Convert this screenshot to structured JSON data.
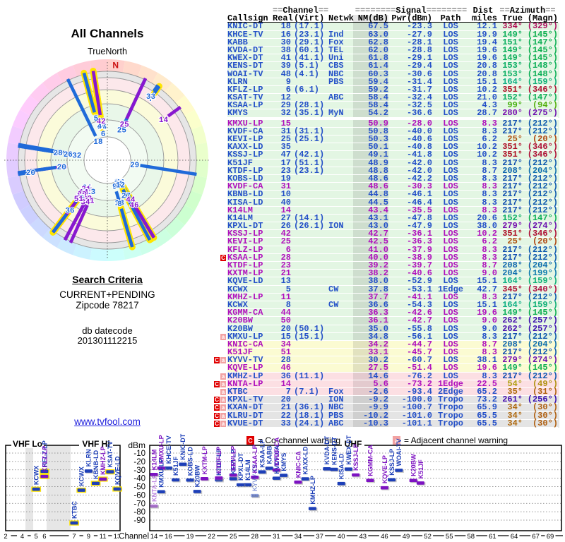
{
  "radar": {
    "title": "All Channels",
    "north_label": "TrueNorth",
    "n_marker": "N"
  },
  "search": {
    "heading": "Search Criteria",
    "mode": "CURRENT+PENDING",
    "zipcode": "Zipcode 78217",
    "db_label": "db datecode",
    "db_datecode": "201301112215",
    "link": "www.tvfool.com"
  },
  "table": {
    "header_groups": {
      "channel": {
        "pre": "==",
        "word": "Channel",
        "post": "=="
      },
      "signal": {
        "pre": "========",
        "word": "Signal",
        "post": "========"
      },
      "dist": "Dist",
      "azimuth": {
        "pre": "==",
        "word": "Azimuth",
        "post": "=="
      }
    },
    "columns": [
      "Callsign",
      "Real",
      "(Virt)",
      "Netwk",
      "NM(dB)",
      "Pwr(dBm)",
      "Path",
      "miles",
      "True",
      "(Magn)"
    ]
  },
  "stations": [
    {
      "cs": "KNIC-DT",
      "re": 18,
      "vi": "17.1",
      "nm": 67.5,
      "pw": -23.3,
      "pa": "LOS",
      "mi": 12.1,
      "az": 334,
      "mg": 329
    },
    {
      "cs": "KHCE-TV",
      "re": 16,
      "vi": "23.1",
      "nw": "Ind",
      "nm": 63.0,
      "pw": -27.9,
      "pa": "LOS",
      "mi": 19.9,
      "az": 149,
      "mg": 145,
      "rh": 1
    },
    {
      "cs": "KABB",
      "re": 30,
      "vi": "29.1",
      "nw": "Fox",
      "nm": 62.8,
      "pw": -28.1,
      "pa": "LOS",
      "mi": 19.4,
      "az": 151,
      "mg": 147,
      "rh": 1
    },
    {
      "cs": "KVDA-DT",
      "re": 38,
      "vi": "60.1",
      "nw": "TEL",
      "nm": 62.0,
      "pw": -28.8,
      "pa": "LOS",
      "mi": 19.6,
      "az": 149,
      "mg": 145
    },
    {
      "cs": "KWEX-DT",
      "re": 41,
      "vi": "41.1",
      "nw": "Uni",
      "nm": 61.8,
      "pw": -29.1,
      "pa": "LOS",
      "mi": 19.6,
      "az": 149,
      "mg": 145
    },
    {
      "cs": "KENS-DT",
      "re": 39,
      "vi": "5.1",
      "nw": "CBS",
      "nm": 61.4,
      "pw": -29.4,
      "pa": "LOS",
      "mi": 20.8,
      "az": 153,
      "mg": 148
    },
    {
      "cs": "WOAI-TV",
      "re": 48,
      "vi": "4.1",
      "nw": "NBC",
      "nm": 60.3,
      "pw": -30.6,
      "pa": "LOS",
      "mi": 20.8,
      "az": 153,
      "mg": 148
    },
    {
      "cs": "KLRN",
      "re": 9,
      "nw": "PBS",
      "nm": 59.4,
      "pw": -31.4,
      "pa": "LOS",
      "mi": 15.1,
      "az": 164,
      "mg": 159
    },
    {
      "cs": "KFLZ-LP",
      "re": 6,
      "vi": "6.1",
      "nm": 59.2,
      "pw": -31.7,
      "pa": "LOS",
      "mi": 10.2,
      "az": 351,
      "mg": 346,
      "hl": 1
    },
    {
      "cs": "KSAT-TV",
      "re": 12,
      "nw": "ABC",
      "nm": 58.4,
      "pw": -32.4,
      "pa": "LOS",
      "mi": 21.0,
      "az": 152,
      "mg": 147,
      "hl": 1
    },
    {
      "cs": "KSAA-LP",
      "re": 29,
      "vi": "28.1",
      "nm": 58.4,
      "pw": -32.5,
      "pa": "LOS",
      "mi": 4.3,
      "az": 99,
      "mg": 94
    },
    {
      "cs": "KMYS",
      "re": 32,
      "vi": "35.1",
      "nw": "MyN",
      "nm": 54.2,
      "pw": -36.6,
      "pa": "LOS",
      "mi": 28.7,
      "az": 280,
      "mg": 275,
      "gap": 1
    },
    {
      "cs": "KMXU-LP",
      "re": 15,
      "nm": 50.9,
      "pw": -28.0,
      "pa": "LOS",
      "mi": 8.3,
      "az": 217,
      "mg": 212,
      "an": 1,
      "rh": 1
    },
    {
      "cs": "KVDF-CA",
      "re": 31,
      "vi": "31.1",
      "nm": 50.8,
      "pw": -40.0,
      "pa": "LOS",
      "mi": 8.3,
      "az": 217,
      "mg": 212
    },
    {
      "cs": "KEVI-LP",
      "re": 25,
      "vi": "25.1",
      "nm": 50.3,
      "pw": -40.6,
      "pa": "LOS",
      "mi": 6.2,
      "az": 25,
      "mg": 20
    },
    {
      "cs": "KAXX-LD",
      "re": 35,
      "nm": 50.1,
      "pw": -40.8,
      "pa": "LOS",
      "mi": 10.2,
      "az": 351,
      "mg": 346
    },
    {
      "cs": "KSSJ-LP",
      "re": 47,
      "vi": "42.1",
      "nm": 49.1,
      "pw": -41.8,
      "pa": "LOS",
      "mi": 10.2,
      "az": 351,
      "mg": 346,
      "rh": 1
    },
    {
      "cs": "K51JF",
      "re": 17,
      "vi": "51.1",
      "nm": 48.9,
      "pw": -42.0,
      "pa": "LOS",
      "mi": 8.3,
      "az": 217,
      "mg": 212
    },
    {
      "cs": "KTDF-LP",
      "re": 23,
      "vi": "23.1",
      "nm": 48.8,
      "pw": -42.0,
      "pa": "LOS",
      "mi": 8.7,
      "az": 208,
      "mg": 204
    },
    {
      "cs": "KOBS-LD",
      "re": 19,
      "nm": 48.6,
      "pw": -42.2,
      "pa": "LOS",
      "mi": 8.3,
      "az": 217,
      "mg": 212
    },
    {
      "cs": "KVDF-CA",
      "re": 31,
      "nm": 48.6,
      "pw": -30.3,
      "pa": "LOS",
      "mi": 8.3,
      "az": 217,
      "mg": 212,
      "an": 1
    },
    {
      "cs": "KBNB-LD",
      "re": 10,
      "nm": 44.8,
      "pw": -46.1,
      "pa": "LOS",
      "mi": 8.3,
      "az": 217,
      "mg": 212,
      "hl": 1
    },
    {
      "cs": "KISA-LD",
      "re": 40,
      "nm": 44.5,
      "pw": -46.4,
      "pa": "LOS",
      "mi": 8.3,
      "az": 217,
      "mg": 212
    },
    {
      "cs": "K14LM",
      "re": 14,
      "nm": 43.4,
      "pw": -35.5,
      "pa": "LOS",
      "mi": 8.3,
      "az": 217,
      "mg": 212,
      "an": 1
    },
    {
      "cs": "K14LM",
      "re": 27,
      "vi": "14.1",
      "nm": 43.1,
      "pw": -47.8,
      "pa": "LOS",
      "mi": 20.6,
      "az": 152,
      "mg": 147,
      "rh": 1
    },
    {
      "cs": "KPXL-DT",
      "re": 26,
      "vi": "26.1",
      "nw": "ION",
      "nm": 43.0,
      "pw": -47.9,
      "pa": "LOS",
      "mi": 38.0,
      "az": 279,
      "mg": 274
    },
    {
      "cs": "KSSJ-LP",
      "re": 42,
      "nm": 42.7,
      "pw": -36.1,
      "pa": "LOS",
      "mi": 10.2,
      "az": 351,
      "mg": 346,
      "an": 1,
      "rh": 1
    },
    {
      "cs": "KEVI-LP",
      "re": 25,
      "nm": 42.5,
      "pw": -36.3,
      "pa": "LOS",
      "mi": 6.2,
      "az": 25,
      "mg": 20,
      "an": 1
    },
    {
      "cs": "KFLZ-LP",
      "re": 6,
      "nm": 41.0,
      "pw": -37.9,
      "pa": "LOS",
      "mi": 8.3,
      "az": 217,
      "mg": 212,
      "an": 1,
      "hl": 1
    },
    {
      "cs": "KSAA-LP",
      "re": 28,
      "nm": 40.0,
      "pw": -38.9,
      "pa": "LOS",
      "mi": 8.3,
      "az": 217,
      "mg": 212,
      "an": 1,
      "wr": "C"
    },
    {
      "cs": "KTDF-LP",
      "re": 23,
      "nm": 39.2,
      "pw": -39.7,
      "pa": "LOS",
      "mi": 8.7,
      "az": 208,
      "mg": 204,
      "an": 1
    },
    {
      "cs": "KXTM-LP",
      "re": 21,
      "nm": 38.2,
      "pw": -40.6,
      "pa": "LOS",
      "mi": 9.0,
      "az": 204,
      "mg": 199,
      "an": 1
    },
    {
      "cs": "KQVE-LD",
      "re": 13,
      "nm": 38.0,
      "pw": -52.9,
      "pa": "LOS",
      "mi": 15.1,
      "az": 164,
      "mg": 159,
      "hl": 1
    },
    {
      "cs": "KCWX",
      "re": 5,
      "nw": "CW",
      "nm": 37.8,
      "pw": -53.1,
      "pa": "1Edge",
      "mi": 42.7,
      "az": 345,
      "mg": 340,
      "hl": 1
    },
    {
      "cs": "KMHZ-LP",
      "re": 11,
      "nm": 37.7,
      "pw": -41.1,
      "pa": "LOS",
      "mi": 8.3,
      "az": 217,
      "mg": 212,
      "an": 1,
      "hl": 1
    },
    {
      "cs": "KCWX",
      "re": 8,
      "nw": "CW",
      "nm": 36.6,
      "pw": -54.3,
      "pa": "LOS",
      "mi": 15.1,
      "az": 164,
      "mg": 159,
      "hl": 1
    },
    {
      "cs": "KGMM-CA",
      "re": 44,
      "nm": 36.3,
      "pw": -42.6,
      "pa": "LOS",
      "mi": 19.6,
      "az": 149,
      "mg": 145,
      "an": 1
    },
    {
      "cs": "K20BW",
      "re": 50,
      "nm": 36.1,
      "pw": -42.7,
      "pa": "LOS",
      "mi": 9.0,
      "az": 262,
      "mg": 257,
      "an": 1
    },
    {
      "cs": "K20BW",
      "re": 20,
      "vi": "50.1",
      "nm": 35.0,
      "pw": -55.8,
      "pa": "LOS",
      "mi": 9.0,
      "az": 262,
      "mg": 257
    },
    {
      "cs": "KMXU-LP",
      "re": 15,
      "vi": "15.1",
      "nm": 34.8,
      "pw": -56.1,
      "pa": "LOS",
      "mi": 8.3,
      "az": 217,
      "mg": 212,
      "wr": "a"
    },
    {
      "cs": "KNIC-CA",
      "re": 34,
      "nm": 34.2,
      "pw": -44.7,
      "pa": "LOS",
      "mi": 8.7,
      "az": 208,
      "mg": 204,
      "an": 1,
      "bg": "y"
    },
    {
      "cs": "K51JF",
      "re": 51,
      "nm": 33.1,
      "pw": -45.7,
      "pa": "LOS",
      "mi": 8.3,
      "az": 217,
      "mg": 212,
      "an": 1,
      "bg": "y"
    },
    {
      "cs": "KYVV-TV",
      "re": 28,
      "nm": 30.2,
      "pw": -60.7,
      "pa": "LOS",
      "mi": 38.1,
      "az": 279,
      "mg": 274,
      "wr": "aC",
      "bg": "y",
      "fa": 1
    },
    {
      "cs": "KQVE-LP",
      "re": 46,
      "nm": 27.5,
      "pw": -51.4,
      "pa": "LOS",
      "mi": 19.6,
      "az": 149,
      "mg": 145,
      "an": 1,
      "bg": "y"
    },
    {
      "cs": "KMHZ-LP",
      "re": 36,
      "vi": "11.1",
      "nm": 14.6,
      "pw": -76.2,
      "pa": "LOS",
      "mi": 8.3,
      "az": 217,
      "mg": 212,
      "wr": "a",
      "bg": "p"
    },
    {
      "cs": "KNTA-LP",
      "re": 14,
      "nm": 5.6,
      "pw": -73.2,
      "pa": "1Edge",
      "mi": 22.5,
      "az": 54,
      "mg": 49,
      "an": 1,
      "wr": "aC",
      "bg": "p",
      "fa": 1
    },
    {
      "cs": "KTBC",
      "re": 7,
      "vi": "7.1",
      "nw": "Fox",
      "nm": -2.6,
      "pw": -93.4,
      "pa": "2Edge",
      "mi": 65.2,
      "az": 35,
      "mg": 31,
      "wr": "a",
      "bg": "p",
      "hl": 1
    },
    {
      "cs": "KPXL-TV",
      "re": 20,
      "nw": "ION",
      "nm": -9.2,
      "pw": -100.0,
      "pa": "Tropo",
      "mi": 73.2,
      "az": 261,
      "mg": 256,
      "wr": "aC",
      "bg": "x"
    },
    {
      "cs": "KXAN-DT",
      "re": 21,
      "vi": "36.1",
      "nw": "NBC",
      "nm": -9.9,
      "pw": -100.7,
      "pa": "Tropo",
      "mi": 65.9,
      "az": 34,
      "mg": 30,
      "wr": "aC",
      "bg": "x"
    },
    {
      "cs": "KLRU-DT",
      "re": 22,
      "vi": "18.1",
      "nw": "PBS",
      "nm": -10.2,
      "pw": -101.0,
      "pa": "Tropo",
      "mi": 65.5,
      "az": 34,
      "mg": 30,
      "wr": "aC",
      "bg": "x"
    },
    {
      "cs": "KVUE-DT",
      "re": 33,
      "vi": "24.1",
      "nw": "ABC",
      "nm": -10.3,
      "pw": -101.1,
      "pa": "Tropo",
      "mi": 65.5,
      "az": 34,
      "mg": 30,
      "wr": "aC",
      "bg": "x"
    }
  ],
  "bottom_chart": {
    "dbm_label": "dBm",
    "channel_axis_label": "Channel",
    "band_vhf_lo": "VHF Lo",
    "band_vhf_hi": "VHF Hi",
    "band_uhf": "UHF",
    "dbm_ticks": [
      -10,
      -20,
      -30,
      -40,
      -50,
      -60,
      -70,
      -80,
      -90
    ],
    "vhf_channel_ticks": [
      2,
      4,
      5,
      6,
      7,
      9,
      11,
      13
    ],
    "uhf_channel_ticks": [
      14,
      16,
      19,
      22,
      25,
      28,
      31,
      34,
      37,
      40,
      43,
      46,
      49,
      52,
      55,
      58,
      61,
      64,
      67,
      69
    ],
    "legend_co": {
      "symbol": "C",
      "text": "= Co-channel warning"
    },
    "legend_adj": {
      "symbol": "a",
      "text": "= Adjacent channel warning"
    }
  },
  "colors": {
    "digital": "#2450c8",
    "analog": "#b011bd",
    "digital_bar": "#1d3fb8",
    "analog_bar": "#7d12c2",
    "radar_digital": "#1f6ad9",
    "radar_analog": "#8818cf",
    "highlight": "#ffe500",
    "warn_co": "#e00000",
    "warn_adj": "#f2a2a2",
    "bg_strong": "#e3f6e3",
    "bg_moderate": "#fbfbd2",
    "bg_weak": "#fcdfe3",
    "bg_tropo": "#e4e4e4",
    "link": "#2222dd",
    "north_marker": "#cc1111"
  }
}
